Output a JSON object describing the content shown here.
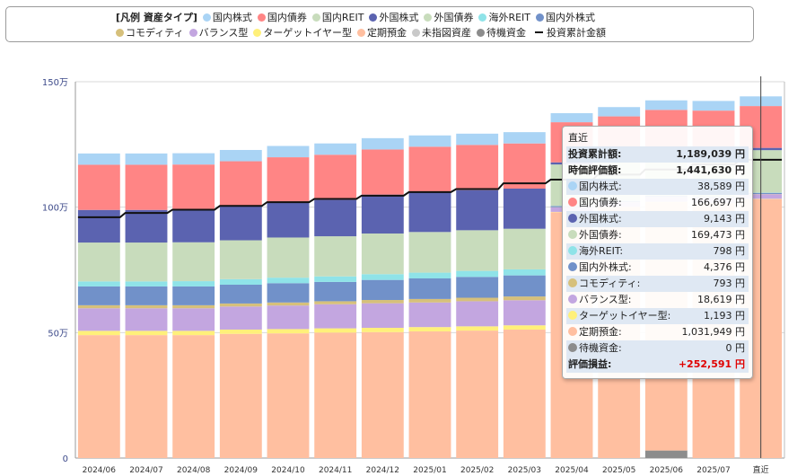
{
  "legend": {
    "title": "[凡例 資産タイプ]",
    "items": [
      {
        "name": "国内株式",
        "color": "#aad4f5"
      },
      {
        "name": "国内債券",
        "color": "#ff8585"
      },
      {
        "name": "国内REIT",
        "color": "#c8dcbc"
      },
      {
        "name": "外国株式",
        "color": "#5b63b0"
      },
      {
        "name": "外国債券",
        "color": "#c8dcbc"
      },
      {
        "name": "海外REIT",
        "color": "#8fe3e8"
      },
      {
        "name": "国内外株式",
        "color": "#7191c9"
      },
      {
        "name": "コモディティ",
        "color": "#d6c07b"
      },
      {
        "name": "バランス型",
        "color": "#c3a6e0"
      },
      {
        "name": "ターゲットイヤー型",
        "color": "#fff07a"
      },
      {
        "name": "定期預金",
        "color": "#ffbfa0"
      },
      {
        "name": "未指図資産",
        "color": "#c9c9c9"
      },
      {
        "name": "待機資金",
        "color": "#8c8c8c"
      }
    ],
    "line_item": "投資累計金額"
  },
  "chart_data": {
    "type": "bar",
    "stacked": true,
    "categories": [
      "2024/06",
      "2024/07",
      "2024/08",
      "2024/09",
      "2024/10",
      "2024/11",
      "2024/12",
      "2025/01",
      "2025/02",
      "2025/03",
      "2025/04",
      "2025/05",
      "2025/06",
      "2025/07",
      "直近"
    ],
    "yticks": [
      "0",
      "50万",
      "100万",
      "150万"
    ],
    "ylim": [
      0,
      1500000
    ],
    "grid": true,
    "series": [
      {
        "name": "待機資金",
        "color": "#8c8c8c",
        "values": [
          0,
          0,
          0,
          0,
          0,
          0,
          0,
          0,
          0,
          0,
          0,
          0,
          30000,
          0,
          0
        ]
      },
      {
        "name": "定期預金",
        "color": "#ffbfa0",
        "values": [
          490000,
          490000,
          490000,
          495000,
          497000,
          500000,
          502000,
          505000,
          508000,
          512000,
          980000,
          1000000,
          990000,
          1015000,
          1031949
        ]
      },
      {
        "name": "ターゲットイヤー型",
        "color": "#fff07a",
        "values": [
          17000,
          17000,
          17000,
          17000,
          17000,
          17000,
          17000,
          17000,
          17000,
          17000,
          1200,
          1200,
          1200,
          1200,
          1193
        ]
      },
      {
        "name": "バランス型",
        "color": "#c3a6e0",
        "values": [
          90000,
          90000,
          90000,
          92000,
          94000,
          96000,
          98000,
          98000,
          100000,
          100000,
          18000,
          18000,
          18500,
          18600,
          18619
        ]
      },
      {
        "name": "コモディティ",
        "color": "#d6c07b",
        "values": [
          12000,
          12000,
          12000,
          12000,
          12000,
          12000,
          13000,
          14000,
          14000,
          15000,
          800,
          800,
          800,
          800,
          793
        ]
      },
      {
        "name": "国内外株式",
        "color": "#7191c9",
        "values": [
          75000,
          75000,
          75000,
          75000,
          77000,
          77000,
          80000,
          82000,
          83000,
          84000,
          4300,
          4300,
          4400,
          4400,
          4376
        ]
      },
      {
        "name": "海外REIT",
        "color": "#8fe3e8",
        "values": [
          20000,
          20000,
          21000,
          22000,
          22000,
          22000,
          23000,
          23000,
          24000,
          24000,
          800,
          800,
          800,
          800,
          798
        ]
      },
      {
        "name": "外国債券",
        "color": "#c8dcbc",
        "values": [
          155000,
          155000,
          155000,
          155000,
          160000,
          160000,
          162000,
          162000,
          162000,
          162000,
          165000,
          166000,
          168000,
          169000,
          169473
        ]
      },
      {
        "name": "外国株式",
        "color": "#5b63b0",
        "values": [
          130000,
          130000,
          130000,
          135000,
          140000,
          145000,
          155000,
          160000,
          160000,
          160000,
          8500,
          8800,
          9000,
          9100,
          9143
        ]
      },
      {
        "name": "国内債券",
        "color": "#ff8585",
        "values": [
          180000,
          180000,
          180000,
          180000,
          180000,
          180000,
          180000,
          180000,
          180000,
          180000,
          160000,
          162000,
          165000,
          166000,
          166697
        ]
      },
      {
        "name": "国内株式",
        "color": "#aad4f5",
        "values": [
          45000,
          45000,
          45000,
          45000,
          45000,
          45000,
          45000,
          45000,
          45000,
          45000,
          36000,
          37000,
          38000,
          38500,
          38589
        ]
      }
    ],
    "line": {
      "name": "投資累計金額",
      "values": [
        960000,
        977000,
        990000,
        1005000,
        1020000,
        1033000,
        1046000,
        1060000,
        1072000,
        1095000,
        1110000,
        1130000,
        1150000,
        1170000,
        1189039
      ]
    }
  },
  "tooltip": {
    "header": "直近",
    "rows": [
      {
        "label": "投資累計額:",
        "value": "1,189,039 円",
        "bold": true,
        "shade": true
      },
      {
        "label": "時価評価額:",
        "value": "1,441,630 円",
        "bold": true,
        "shade": false
      },
      {
        "label": "国内株式:",
        "value": "38,589 円",
        "color": "#aad4f5",
        "shade": true
      },
      {
        "label": "国内債券:",
        "value": "166,697 円",
        "color": "#ff8585",
        "shade": false
      },
      {
        "label": "外国株式:",
        "value": "9,143 円",
        "color": "#5b63b0",
        "shade": true
      },
      {
        "label": "外国債券:",
        "value": "169,473 円",
        "color": "#c8dcbc",
        "shade": false
      },
      {
        "label": "海外REIT:",
        "value": "798 円",
        "color": "#8fe3e8",
        "shade": true
      },
      {
        "label": "国内外株式:",
        "value": "4,376 円",
        "color": "#7191c9",
        "shade": false
      },
      {
        "label": "コモディティ:",
        "value": "793 円",
        "color": "#d6c07b",
        "shade": true
      },
      {
        "label": "バランス型:",
        "value": "18,619 円",
        "color": "#c3a6e0",
        "shade": false
      },
      {
        "label": "ターゲットイヤー型:",
        "value": "1,193 円",
        "color": "#fff07a",
        "shade": true
      },
      {
        "label": "定期預金:",
        "value": "1,031,949 円",
        "color": "#ffbfa0",
        "shade": false
      },
      {
        "label": "待機資金:",
        "value": "0 円",
        "color": "#8c8c8c",
        "shade": true
      }
    ],
    "total": {
      "label": "評価損益:",
      "value": "+252,591 円"
    }
  }
}
